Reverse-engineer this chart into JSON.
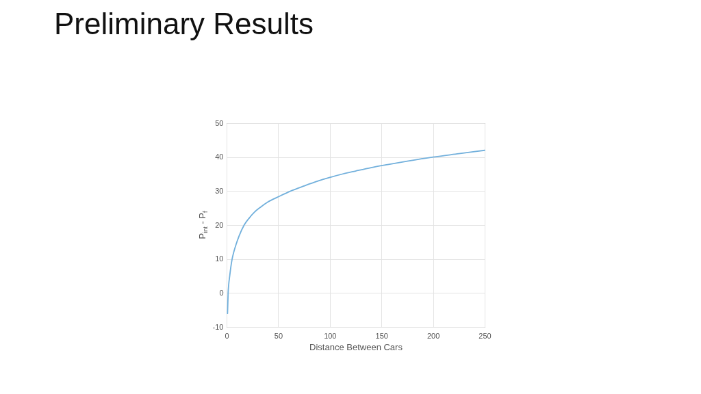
{
  "chart_data": {
    "type": "line",
    "title": "Preliminary Results",
    "xlabel": "Distance Between Cars",
    "ylabel": "P$_{int}$ - P$_{f}$",
    "x": [
      0.9,
      1.5,
      2,
      3.1,
      4,
      5.3,
      7,
      9.3,
      12,
      17,
      22,
      27,
      33,
      40,
      50,
      62,
      75,
      89,
      100,
      112,
      125,
      140,
      156,
      175,
      200,
      225,
      250
    ],
    "series": [
      {
        "color": "#72b0dc",
        "values": [
          -6,
          0,
          2.3,
          5.2,
          7.4,
          9.9,
          12.1,
          14.4,
          16.7,
          20,
          22.1,
          23.8,
          25.3,
          26.8,
          28.3,
          30,
          31.5,
          33,
          34,
          35,
          35.9,
          36.9,
          37.8,
          38.8,
          40,
          41,
          42
        ]
      }
    ],
    "xlim": [
      0,
      250
    ],
    "ylim": [
      -10,
      50
    ],
    "xticks": [
      0,
      50,
      100,
      150,
      200,
      250
    ],
    "yticks": [
      -10,
      0,
      10,
      20,
      30,
      40,
      50
    ],
    "grid": true,
    "marker": "none",
    "line_style": "solid"
  }
}
